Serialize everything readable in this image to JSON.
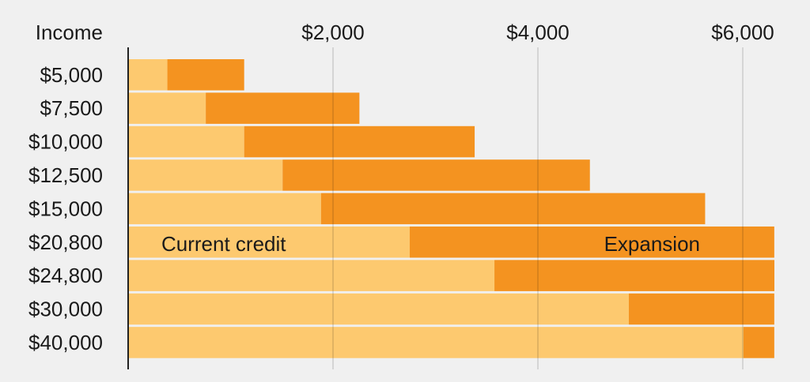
{
  "chart_data": {
    "type": "bar",
    "orientation": "horizontal",
    "stacked": true,
    "ylabel": "Income",
    "categories": [
      "$5,000",
      "$7,500",
      "$10,000",
      "$12,500",
      "$15,000",
      "$20,800",
      "$24,800",
      "$30,000",
      "$40,000"
    ],
    "series": [
      {
        "name": "Current credit",
        "color": "#fdc96f",
        "values": [
          375,
          750,
          1125,
          1500,
          1875,
          2741,
          3568,
          4880,
          6000
        ]
      },
      {
        "name": "Expansion",
        "color": "#f49320",
        "values": [
          750,
          1500,
          2250,
          3000,
          3750,
          3559,
          2733,
          1420,
          300
        ]
      }
    ],
    "xlim": [
      0,
      6300
    ],
    "xticks": [
      2000,
      4000,
      6000
    ],
    "xtick_labels": [
      "$2,000",
      "$4,000",
      "$6,000"
    ],
    "x_axis_position": "top",
    "grid": true,
    "legend": "inline labels on $20,800 row"
  }
}
